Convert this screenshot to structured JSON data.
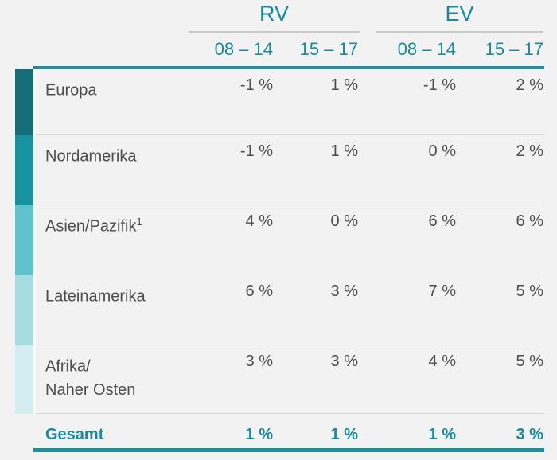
{
  "colors": {
    "accent_teal": "#19899e",
    "rule_teal": "#1e8e9c",
    "row_separator": "#d8d8d8",
    "group_underline": "#c9c9c9",
    "background": "#f2f2f2",
    "text_dark": "#4d4d4d",
    "block_colors": [
      "#156d78",
      "#17939f",
      "#61c2cc",
      "#a6dbe0",
      "#d4edf0"
    ]
  },
  "header": {
    "groups": [
      {
        "label": "RV",
        "periods": [
          "08 – 14",
          "15 – 17"
        ]
      },
      {
        "label": "EV",
        "periods": [
          "08 – 14",
          "15 – 17"
        ]
      }
    ],
    "period_columns": [
      "08 – 14",
      "15 – 17",
      "08 – 14",
      "15 – 17"
    ]
  },
  "rows": [
    {
      "region": "Europa",
      "region_line2": "",
      "footnote": "",
      "values": [
        "-1 %",
        "1 %",
        "-1 %",
        "2 %"
      ]
    },
    {
      "region": "Nordamerika",
      "region_line2": "",
      "footnote": "",
      "values": [
        "-1 %",
        "1 %",
        "0 %",
        "2 %"
      ]
    },
    {
      "region": "Asien/Pazifik",
      "region_line2": "",
      "footnote": "1",
      "values": [
        "4 %",
        "0 %",
        "6 %",
        "6 %"
      ]
    },
    {
      "region": "Lateinamerika",
      "region_line2": "",
      "footnote": "",
      "values": [
        "6 %",
        "3 %",
        "7 %",
        "5 %"
      ]
    },
    {
      "region": "Afrika/",
      "region_line2": "Naher Osten",
      "footnote": "",
      "values": [
        "3 %",
        "3 %",
        "4 %",
        "5 %"
      ]
    }
  ],
  "total": {
    "label": "Gesamt",
    "values": [
      "1 %",
      "1 %",
      "1 %",
      "3 %"
    ]
  },
  "chart_data": {
    "type": "table",
    "title": "",
    "column_groups": [
      "RV",
      "EV"
    ],
    "columns": [
      "RV 08–14",
      "RV 15–17",
      "EV 08–14",
      "EV 15–17"
    ],
    "unit": "%",
    "rows": [
      {
        "region": "Europa",
        "values_pct": [
          -1,
          1,
          -1,
          2
        ]
      },
      {
        "region": "Nordamerika",
        "values_pct": [
          -1,
          1,
          0,
          2
        ]
      },
      {
        "region": "Asien/Pazifik (1)",
        "values_pct": [
          4,
          0,
          6,
          6
        ]
      },
      {
        "region": "Lateinamerika",
        "values_pct": [
          6,
          3,
          7,
          5
        ]
      },
      {
        "region": "Afrika/Naher Osten",
        "values_pct": [
          3,
          3,
          4,
          5
        ]
      },
      {
        "region": "Gesamt",
        "values_pct": [
          1,
          1,
          1,
          3
        ]
      }
    ]
  }
}
